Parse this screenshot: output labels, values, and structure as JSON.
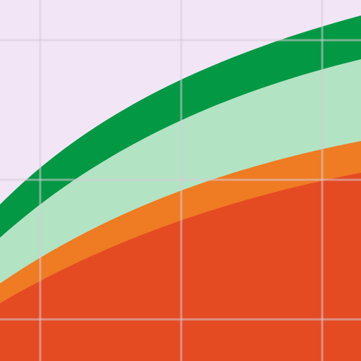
{
  "colors": {
    "background": "#f2e6f6",
    "grid_line": "#d9cad9",
    "band_top_green": "#039844",
    "band_mid_light_green": "#b2e3c3",
    "band_orange": "#ef7b22",
    "band_red_fill": "#e44b23"
  },
  "grid": {
    "visible": true
  },
  "bands": [
    {
      "name": "top-green-band",
      "color_key": "band_top_green"
    },
    {
      "name": "light-green-band",
      "color_key": "band_mid_light_green"
    },
    {
      "name": "orange-band",
      "color_key": "band_orange"
    },
    {
      "name": "red-fill",
      "color_key": "band_red_fill"
    }
  ]
}
